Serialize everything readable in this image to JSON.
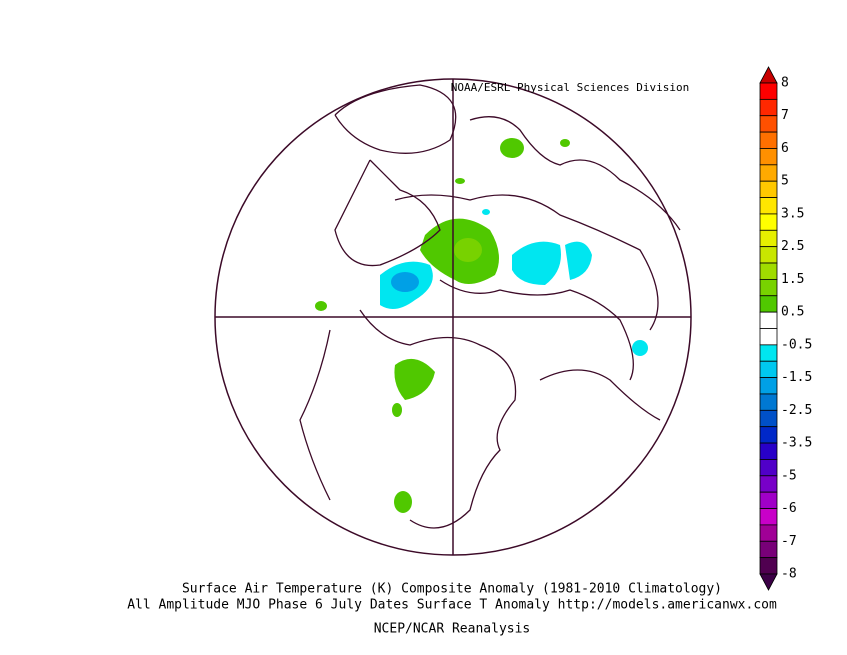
{
  "credit": "NOAA/ESRL Physical Sciences Division",
  "title_lines": [
    "Surface Air Temperature (K) Composite Anomaly (1981-2010 Climatology)",
    "All Amplitude MJO Phase 6 July Dates Surface T Anomaly http://models.americanwx.com"
  ],
  "source": "NCEP/NCAR Reanalysis",
  "colorbar": {
    "labels": [
      "8",
      "7",
      "6",
      "5",
      "3.5",
      "2.5",
      "1.5",
      "0.5",
      "-0.5",
      "-1.5",
      "-2.5",
      "-3.5",
      "-5",
      "-6",
      "-7",
      "-8"
    ],
    "colors": [
      "#c80000",
      "#ff0000",
      "#ff2800",
      "#ff5000",
      "#ff7000",
      "#ff9000",
      "#ffaa00",
      "#ffc800",
      "#ffe600",
      "#ffff00",
      "#e6f000",
      "#c8e600",
      "#a0dc00",
      "#78d200",
      "#50c800",
      "#ffffff",
      "#ffffff",
      "#00e6f0",
      "#00c8f0",
      "#00a0e6",
      "#0078d2",
      "#0050c8",
      "#0028c8",
      "#2800c8",
      "#5000c8",
      "#7800c8",
      "#a000c8",
      "#c800c8",
      "#a00096",
      "#780078",
      "#500050",
      "#3c0046"
    ]
  }
}
